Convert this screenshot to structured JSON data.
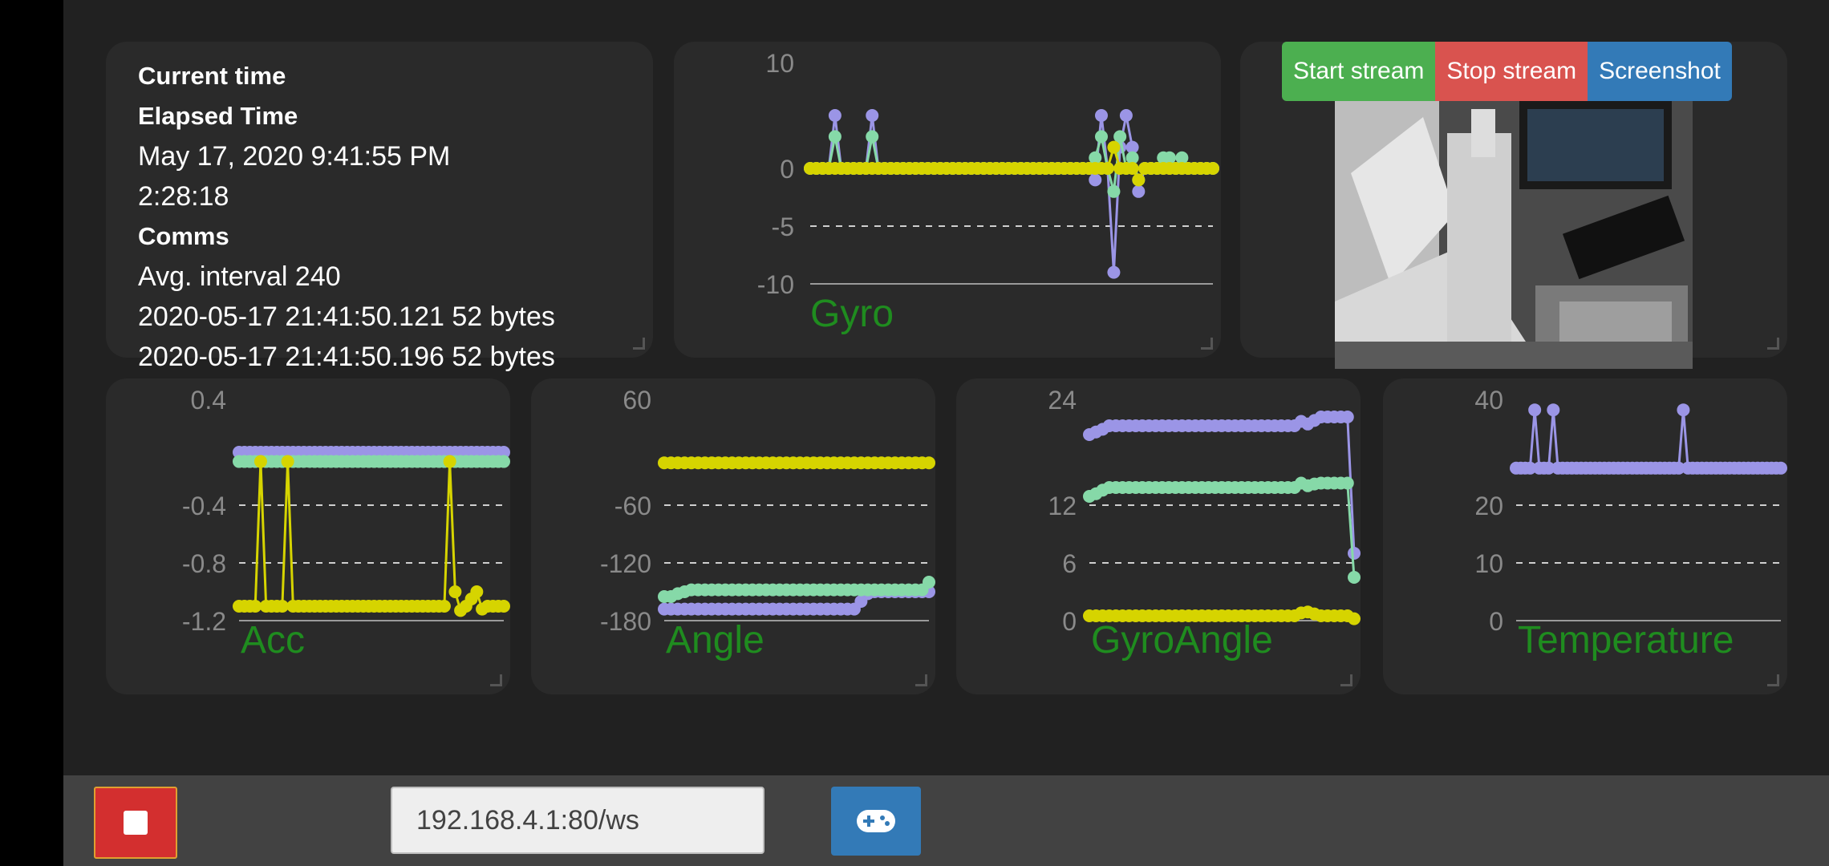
{
  "info": {
    "current_time_label": "Current time",
    "elapsed_label": "Elapsed Time",
    "current_time_value": "May 17, 2020 9:41:55 PM",
    "elapsed_value": "2:28:18",
    "comms_label": "Comms",
    "avg_interval": "Avg. interval 240",
    "log_lines": [
      "2020-05-17 21:41:50.121 52 bytes",
      "2020-05-17 21:41:50.196 52 bytes"
    ]
  },
  "stream": {
    "start_label": "Start stream",
    "stop_label": "Stop stream",
    "screenshot_label": "Screenshot"
  },
  "bottom": {
    "url_value": "192.168.4.1:80/ws",
    "gamepad_icon": "gamepad-icon",
    "stop_icon": "stop-icon"
  },
  "colors": {
    "series1": "#9b95e6",
    "series2": "#86d9a8",
    "series3": "#d6d400",
    "title": "#1f8c1f",
    "stop": "#d32f2f",
    "accent_blue": "#337ab7",
    "start_green": "#4caf50",
    "stop_red": "#d9534f"
  },
  "chart_data": [
    {
      "id": "gyro",
      "type": "line",
      "title": "Gyro",
      "ticks": [
        "10",
        "0",
        "-5",
        "-10"
      ],
      "series": [
        {
          "values": [
            0,
            0,
            0,
            0,
            5,
            0,
            0,
            0,
            0,
            0,
            5,
            0,
            0,
            0,
            0,
            0,
            0,
            0,
            0,
            0,
            0,
            0,
            0,
            0,
            0,
            0,
            0,
            0,
            0,
            0,
            0,
            0,
            0,
            0,
            0,
            0,
            0,
            0,
            0,
            0,
            0,
            0,
            0,
            0,
            0,
            0,
            -1,
            5,
            0,
            -9,
            2,
            5,
            2,
            -2,
            0,
            0,
            0,
            0,
            0,
            0,
            0,
            0,
            0,
            0,
            0,
            0
          ]
        },
        {
          "values": [
            0,
            0,
            0,
            0,
            3,
            0,
            0,
            0,
            0,
            0,
            3,
            0,
            0,
            0,
            0,
            0,
            0,
            0,
            0,
            0,
            0,
            0,
            0,
            0,
            0,
            0,
            0,
            0,
            0,
            0,
            0,
            0,
            0,
            0,
            0,
            0,
            0,
            0,
            0,
            0,
            0,
            0,
            0,
            0,
            0,
            0,
            1,
            3,
            0,
            -2,
            3,
            0,
            1,
            -1,
            0,
            0,
            0,
            1,
            1,
            0,
            1,
            0,
            0,
            0,
            0,
            0
          ]
        },
        {
          "values": [
            0,
            0,
            0,
            0,
            0,
            0,
            0,
            0,
            0,
            0,
            0,
            0,
            0,
            0,
            0,
            0,
            0,
            0,
            0,
            0,
            0,
            0,
            0,
            0,
            0,
            0,
            0,
            0,
            0,
            0,
            0,
            0,
            0,
            0,
            0,
            0,
            0,
            0,
            0,
            0,
            0,
            0,
            0,
            0,
            0,
            0,
            0,
            0,
            0,
            2,
            0,
            0,
            0,
            -1,
            0,
            0,
            0,
            0,
            0,
            0,
            0,
            0,
            0,
            0,
            0,
            0
          ]
        }
      ]
    },
    {
      "id": "acc",
      "type": "line",
      "title": "Acc",
      "ticks": [
        "0.4",
        "-0.4",
        "-0.8",
        "-1.2"
      ],
      "series": [
        {
          "values": [
            0,
            0,
            0,
            0,
            0,
            0,
            0,
            0,
            0,
            0,
            0,
            0,
            0,
            0,
            0,
            0,
            0,
            0,
            0,
            0,
            0,
            0,
            0,
            0,
            0,
            0,
            0,
            0,
            0,
            0,
            0,
            0,
            0,
            0,
            0,
            0,
            0,
            0,
            0,
            0,
            0,
            0,
            0,
            0,
            0,
            0,
            0,
            0,
            0,
            0
          ]
        },
        {
          "values": [
            -0.07,
            -0.07,
            -0.07,
            -0.07,
            -0.07,
            -0.07,
            -0.07,
            -0.07,
            -0.07,
            -0.07,
            -0.07,
            -0.07,
            -0.07,
            -0.07,
            -0.07,
            -0.07,
            -0.07,
            -0.07,
            -0.07,
            -0.07,
            -0.07,
            -0.07,
            -0.07,
            -0.07,
            -0.07,
            -0.07,
            -0.07,
            -0.07,
            -0.07,
            -0.07,
            -0.07,
            -0.07,
            -0.07,
            -0.07,
            -0.07,
            -0.07,
            -0.07,
            -0.07,
            -0.07,
            -0.07,
            -0.07,
            -0.07,
            -0.07,
            -0.07,
            -0.07,
            -0.07,
            -0.07,
            -0.07,
            -0.07,
            -0.07
          ]
        },
        {
          "values": [
            -1.1,
            -1.1,
            -1.1,
            -1.1,
            -0.07,
            -1.1,
            -1.1,
            -1.1,
            -1.1,
            -0.07,
            -1.1,
            -1.1,
            -1.1,
            -1.1,
            -1.1,
            -1.1,
            -1.1,
            -1.1,
            -1.1,
            -1.1,
            -1.1,
            -1.1,
            -1.1,
            -1.1,
            -1.1,
            -1.1,
            -1.1,
            -1.1,
            -1.1,
            -1.1,
            -1.1,
            -1.1,
            -1.1,
            -1.1,
            -1.1,
            -1.1,
            -1.1,
            -1.1,
            -1.1,
            -0.07,
            -1.0,
            -1.13,
            -1.1,
            -1.05,
            -1.0,
            -1.12,
            -1.1,
            -1.1,
            -1.1,
            -1.1
          ]
        }
      ]
    },
    {
      "id": "angle",
      "type": "line",
      "title": "Angle",
      "ticks": [
        "60",
        "-60",
        "-120",
        "-180"
      ],
      "series": [
        {
          "values": [
            -168,
            -168,
            -168,
            -168,
            -168,
            -168,
            -168,
            -168,
            -168,
            -168,
            -168,
            -168,
            -168,
            -168,
            -168,
            -168,
            -168,
            -168,
            -168,
            -168,
            -168,
            -168,
            -168,
            -168,
            -168,
            -168,
            -168,
            -168,
            -168,
            -160,
            -152,
            -150,
            -150,
            -150,
            -150,
            -150,
            -150,
            -150,
            -150,
            -150
          ]
        },
        {
          "values": [
            -155,
            -155,
            -152,
            -150,
            -148,
            -148,
            -148,
            -148,
            -148,
            -148,
            -148,
            -148,
            -148,
            -148,
            -148,
            -148,
            -148,
            -148,
            -148,
            -148,
            -148,
            -148,
            -148,
            -148,
            -148,
            -148,
            -148,
            -148,
            -148,
            -148,
            -148,
            -148,
            -148,
            -148,
            -148,
            -148,
            -148,
            -148,
            -148,
            -140
          ]
        },
        {
          "values": [
            -12,
            -12,
            -12,
            -12,
            -12,
            -12,
            -12,
            -12,
            -12,
            -12,
            -12,
            -12,
            -12,
            -12,
            -12,
            -12,
            -12,
            -12,
            -12,
            -12,
            -12,
            -12,
            -12,
            -12,
            -12,
            -12,
            -12,
            -12,
            -12,
            -12,
            -12,
            -12,
            -12,
            -12,
            -12,
            -12,
            -12,
            -12,
            -12,
            -12
          ]
        }
      ]
    },
    {
      "id": "gyroangle",
      "type": "line",
      "title": "GyroAngle",
      "ticks": [
        "24",
        "12",
        "6",
        "0"
      ],
      "series": [
        {
          "values": [
            20,
            20.3,
            20.6,
            21,
            21,
            21,
            21,
            21,
            21,
            21,
            21,
            21,
            21,
            21,
            21,
            21,
            21,
            21,
            21,
            21,
            21,
            21,
            21,
            21,
            21,
            21,
            21,
            21,
            21,
            21,
            21,
            21,
            21.5,
            21.2,
            21.6,
            22,
            22,
            22,
            22,
            22,
            7
          ]
        },
        {
          "values": [
            13,
            13.3,
            13.7,
            14,
            14,
            14,
            14,
            14,
            14,
            14,
            14,
            14,
            14,
            14,
            14,
            14,
            14,
            14,
            14,
            14,
            14,
            14,
            14,
            14,
            14,
            14,
            14,
            14,
            14,
            14,
            14,
            14,
            14.5,
            14.2,
            14.4,
            14.5,
            14.5,
            14.5,
            14.5,
            14.5,
            4.5
          ]
        },
        {
          "values": [
            0.5,
            0.5,
            0.5,
            0.5,
            0.5,
            0.5,
            0.5,
            0.5,
            0.5,
            0.5,
            0.5,
            0.5,
            0.5,
            0.5,
            0.5,
            0.5,
            0.5,
            0.5,
            0.5,
            0.5,
            0.5,
            0.5,
            0.5,
            0.5,
            0.5,
            0.5,
            0.5,
            0.5,
            0.5,
            0.5,
            0.5,
            0.5,
            0.8,
            0.9,
            0.7,
            0.5,
            0.5,
            0.5,
            0.5,
            0.5,
            0.2
          ]
        }
      ]
    },
    {
      "id": "temp",
      "type": "line",
      "title": "Temperature",
      "ticks": [
        "40",
        "20",
        "10",
        "0"
      ],
      "series": [
        {
          "values": [
            27,
            27,
            27,
            27,
            38,
            27,
            27,
            27,
            38,
            27,
            27,
            27,
            27,
            27,
            27,
            27,
            27,
            27,
            27,
            27,
            27,
            27,
            27,
            27,
            27,
            27,
            27,
            27,
            27,
            27,
            27,
            27,
            27,
            27,
            27,
            27,
            38,
            27,
            27,
            27,
            27,
            27,
            27,
            27,
            27,
            27,
            27,
            27,
            27,
            27,
            27,
            27,
            27,
            27,
            27,
            27,
            27,
            27
          ]
        }
      ]
    }
  ]
}
